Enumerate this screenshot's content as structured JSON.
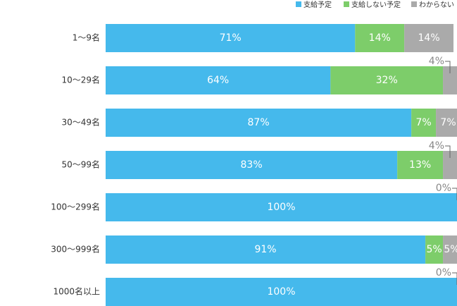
{
  "chart_data": {
    "type": "stacked-bar-horizontal",
    "categories": [
      "1〜9名",
      "10〜29名",
      "30〜49名",
      "50〜99名",
      "100〜299名",
      "300〜999名",
      "1000名以上"
    ],
    "xlim": [
      0,
      100
    ],
    "series": [
      {
        "name": "支給予定",
        "color": "#45b9ec",
        "values": [
          71,
          64,
          87,
          83,
          100,
          91,
          100
        ],
        "value_labels": [
          "71%",
          "64%",
          "87%",
          "83%",
          "100%",
          "91%",
          "100%"
        ]
      },
      {
        "name": "支給しない予定",
        "color": "#7dcd6a",
        "values": [
          14,
          32,
          7,
          13,
          0,
          5,
          0
        ],
        "value_labels": [
          "14%",
          "32%",
          "7%",
          "13%",
          null,
          "5%",
          null
        ]
      },
      {
        "name": "わからない",
        "color": "#aaaaaa",
        "values": [
          14,
          4,
          7,
          4,
          0,
          5,
          0
        ],
        "value_labels": [
          "14%",
          "4%",
          "7%",
          "4%",
          "0%",
          "5%",
          "0%"
        ]
      }
    ]
  }
}
